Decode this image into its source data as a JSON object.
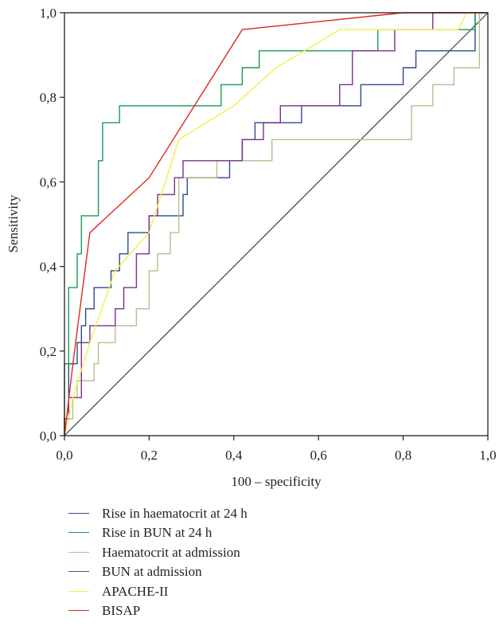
{
  "chart_data": {
    "type": "line",
    "title": "",
    "xlabel": "100 – specificity",
    "ylabel": "Sensitivity",
    "xlim": [
      0,
      1
    ],
    "ylim": [
      0,
      1
    ],
    "x_ticks": [
      "0,0",
      "0,2",
      "0,4",
      "0,6",
      "0,8",
      "1,0"
    ],
    "y_ticks": [
      "0,0",
      "0,2",
      "0,4",
      "0,6",
      "0,8",
      "1,0"
    ],
    "grid": false,
    "legend_position": "bottom",
    "reference_line": {
      "x": [
        0,
        1
      ],
      "y": [
        0,
        1
      ],
      "color": "#3a3a3a"
    },
    "series": [
      {
        "name": "Rise in haematocrit at 24 h",
        "color": "#2b4a8b",
        "x": [
          0,
          0,
          0.01,
          0.01,
          0.03,
          0.03,
          0.04,
          0.04,
          0.05,
          0.05,
          0.07,
          0.07,
          0.11,
          0.11,
          0.13,
          0.13,
          0.15,
          0.15,
          0.2,
          0.2,
          0.28,
          0.28,
          0.29,
          0.29,
          0.39,
          0.39,
          0.42,
          0.42,
          0.45,
          0.45,
          0.47,
          0.47,
          0.5,
          0.5,
          0.56,
          0.56,
          0.7,
          0.7,
          0.76,
          0.76,
          0.8,
          0.8,
          0.83,
          0.83,
          0.97,
          0.97,
          1.0
        ],
        "y": [
          0,
          0.04,
          0.04,
          0.17,
          0.17,
          0.22,
          0.22,
          0.26,
          0.26,
          0.3,
          0.3,
          0.35,
          0.35,
          0.39,
          0.39,
          0.43,
          0.43,
          0.48,
          0.48,
          0.52,
          0.52,
          0.57,
          0.57,
          0.61,
          0.61,
          0.65,
          0.65,
          0.7,
          0.7,
          0.74,
          0.74,
          0.74,
          0.74,
          0.74,
          0.74,
          0.78,
          0.78,
          0.83,
          0.83,
          0.83,
          0.83,
          0.87,
          0.87,
          0.91,
          0.91,
          1.0,
          1.0
        ]
      },
      {
        "name": "Rise in BUN at 24 h",
        "color": "#1a9a55",
        "x": [
          0,
          0,
          0.01,
          0.01,
          0.03,
          0.03,
          0.04,
          0.04,
          0.08,
          0.08,
          0.09,
          0.09,
          0.11,
          0.11,
          0.13,
          0.13,
          0.32,
          0.32,
          0.37,
          0.37,
          0.42,
          0.42,
          0.46,
          0.46,
          0.74,
          0.74,
          0.97,
          0.97,
          1.0
        ],
        "y": [
          0,
          0.17,
          0.17,
          0.35,
          0.35,
          0.43,
          0.43,
          0.52,
          0.52,
          0.65,
          0.65,
          0.74,
          0.74,
          0.74,
          0.74,
          0.78,
          0.78,
          0.78,
          0.78,
          0.83,
          0.83,
          0.87,
          0.87,
          0.91,
          0.91,
          0.96,
          0.96,
          1.0,
          1.0
        ]
      },
      {
        "name": "Haematocrit at admission",
        "color": "#b5bf8c",
        "x": [
          0,
          0,
          0.02,
          0.02,
          0.03,
          0.03,
          0.07,
          0.07,
          0.08,
          0.08,
          0.12,
          0.12,
          0.17,
          0.17,
          0.2,
          0.2,
          0.22,
          0.22,
          0.25,
          0.25,
          0.27,
          0.27,
          0.36,
          0.36,
          0.49,
          0.49,
          0.82,
          0.82,
          0.83,
          0.83,
          0.87,
          0.87,
          0.92,
          0.92,
          0.98,
          0.98,
          1.0
        ],
        "y": [
          0,
          0.04,
          0.04,
          0.09,
          0.09,
          0.13,
          0.13,
          0.17,
          0.17,
          0.22,
          0.22,
          0.26,
          0.26,
          0.3,
          0.3,
          0.39,
          0.39,
          0.43,
          0.43,
          0.48,
          0.48,
          0.61,
          0.61,
          0.65,
          0.65,
          0.7,
          0.7,
          0.78,
          0.78,
          0.78,
          0.78,
          0.83,
          0.83,
          0.87,
          0.87,
          1.0,
          1.0
        ]
      },
      {
        "name": "BUN at admission",
        "color": "#7d2f8e",
        "x": [
          0,
          0,
          0.01,
          0.01,
          0.04,
          0.04,
          0.06,
          0.06,
          0.12,
          0.12,
          0.14,
          0.14,
          0.17,
          0.17,
          0.2,
          0.2,
          0.22,
          0.22,
          0.26,
          0.26,
          0.28,
          0.28,
          0.37,
          0.37,
          0.42,
          0.42,
          0.47,
          0.47,
          0.51,
          0.51,
          0.65,
          0.65,
          0.68,
          0.68,
          0.74,
          0.74,
          0.78,
          0.78,
          0.87,
          0.87,
          0.88,
          0.88,
          1.0
        ],
        "y": [
          0,
          0.04,
          0.04,
          0.09,
          0.09,
          0.22,
          0.22,
          0.26,
          0.26,
          0.3,
          0.3,
          0.35,
          0.35,
          0.43,
          0.43,
          0.52,
          0.52,
          0.57,
          0.57,
          0.61,
          0.61,
          0.65,
          0.65,
          0.65,
          0.65,
          0.7,
          0.7,
          0.74,
          0.74,
          0.78,
          0.78,
          0.83,
          0.83,
          0.91,
          0.91,
          0.91,
          0.91,
          0.96,
          0.96,
          1.0,
          1.0,
          1.0,
          1.0
        ]
      },
      {
        "name": "APACHE-II",
        "color": "#f2ef4a",
        "x": [
          0,
          0.02,
          0.06,
          0.12,
          0.2,
          0.27,
          0.4,
          0.5,
          0.65,
          0.93,
          0.95,
          1.0
        ],
        "y": [
          0,
          0.09,
          0.22,
          0.39,
          0.48,
          0.7,
          0.78,
          0.87,
          0.96,
          0.96,
          1.0,
          1.0
        ]
      },
      {
        "name": "BISAP",
        "color": "#e4261f",
        "x": [
          0,
          0.02,
          0.06,
          0.2,
          0.42,
          0.8,
          1.0
        ],
        "y": [
          0,
          0.17,
          0.48,
          0.61,
          0.96,
          1.0,
          1.0
        ]
      }
    ]
  }
}
